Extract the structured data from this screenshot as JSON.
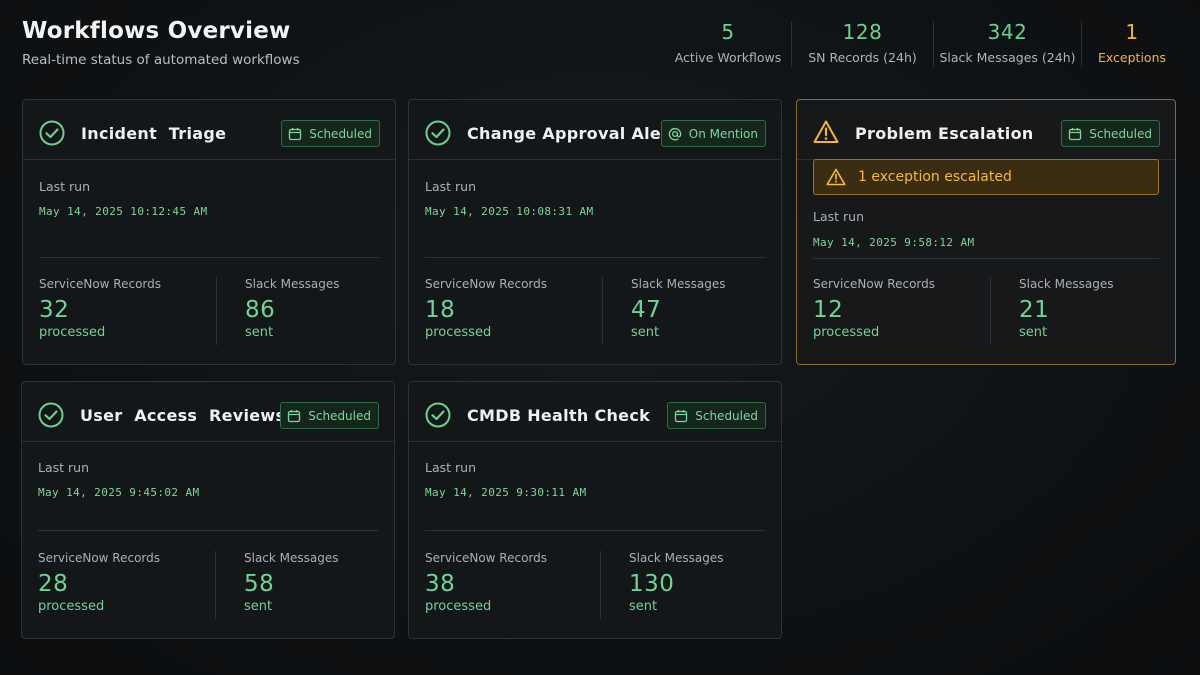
{
  "header": {
    "title": "Workflows Overview",
    "subtitle": "Real-time status of automated workflows"
  },
  "stats": [
    {
      "value": "5",
      "label": "Active Workflows"
    },
    {
      "value": "128",
      "label": "SN Records (24h)"
    },
    {
      "value": "342",
      "label": "Slack Messages (24h)"
    },
    {
      "value": "1",
      "label": "Exceptions"
    }
  ],
  "labels": {
    "last_run": "Last run",
    "sn_records": "ServiceNow Records",
    "slack_messages": "Slack Messages",
    "processed": "processed",
    "sent": "sent"
  },
  "workflows": [
    {
      "name": "Incident  Triage",
      "trigger": "Scheduled",
      "last_run": "May 14, 2025 10:12:45 AM",
      "sn_records": "32",
      "slack_messages": "86"
    },
    {
      "name": "Change Approval Alerts",
      "trigger": "On Mention",
      "last_run": "May 14, 2025 10:08:31 AM",
      "sn_records": "18",
      "slack_messages": "47"
    },
    {
      "name": "Problem Escalation",
      "trigger": "Scheduled",
      "exception": "1 exception escalated",
      "last_run": "May 14, 2025 9:58:12 AM",
      "sn_records": "12",
      "slack_messages": "21"
    },
    {
      "name": "User  Access  Reviews",
      "trigger": "Scheduled",
      "last_run": "May 14, 2025 9:45:02 AM",
      "sn_records": "28",
      "slack_messages": "58"
    },
    {
      "name": "CMDB Health Check",
      "trigger": "Scheduled",
      "last_run": "May 14, 2025 9:30:11 AM",
      "sn_records": "38",
      "slack_messages": "130"
    }
  ],
  "colors": {
    "accent": "#6fcf8e",
    "warning": "#f2b53c",
    "background": "#0f1214",
    "card": "#141719"
  }
}
